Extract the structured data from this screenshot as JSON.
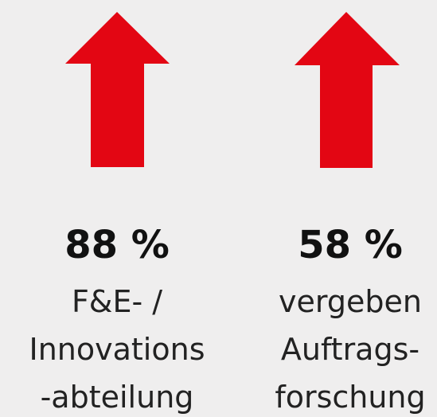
{
  "items": [
    {
      "value": "88 %",
      "lines": [
        "F&E- /",
        "Innovations",
        "-abteilung"
      ]
    },
    {
      "value": "58 %",
      "lines": [
        "vergeben",
        "Auftrags-",
        "forschung"
      ]
    }
  ]
}
